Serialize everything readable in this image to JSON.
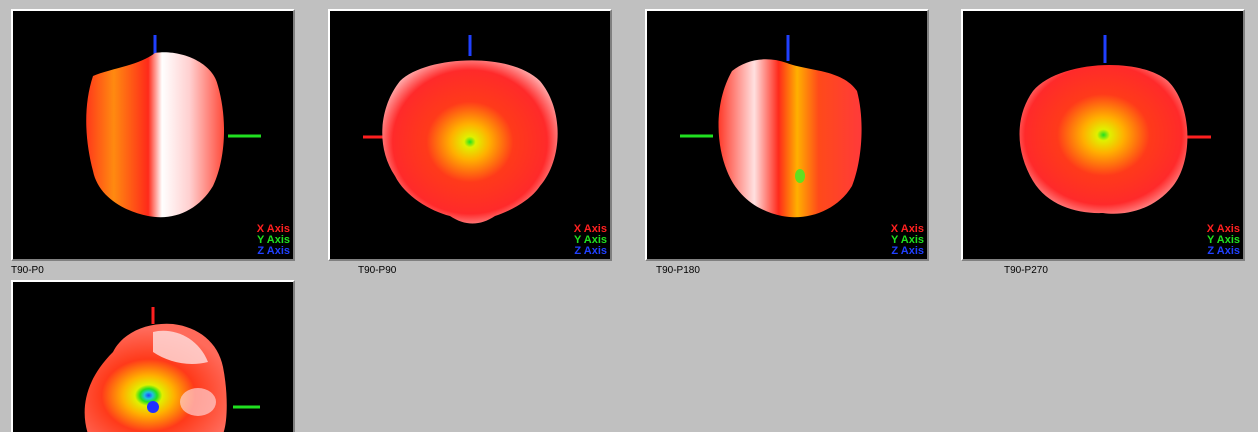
{
  "views": [
    {
      "caption": "T90-P0"
    },
    {
      "caption": "T90-P90"
    },
    {
      "caption": "T90-P180"
    },
    {
      "caption": "T90-P270"
    },
    {
      "caption": ""
    }
  ],
  "legend": {
    "x_axis": "X Axis",
    "y_axis": "Y Axis",
    "z_axis": "Z Axis"
  },
  "colors": {
    "background": "#c0c0c0",
    "viewport": "#000000",
    "x_axis": "#ff2020",
    "y_axis": "#20e020",
    "z_axis": "#2040ff",
    "pattern_hot": "#ff2a1a",
    "pattern_mid": "#ffb000",
    "pattern_highlight": "#ffffff"
  }
}
